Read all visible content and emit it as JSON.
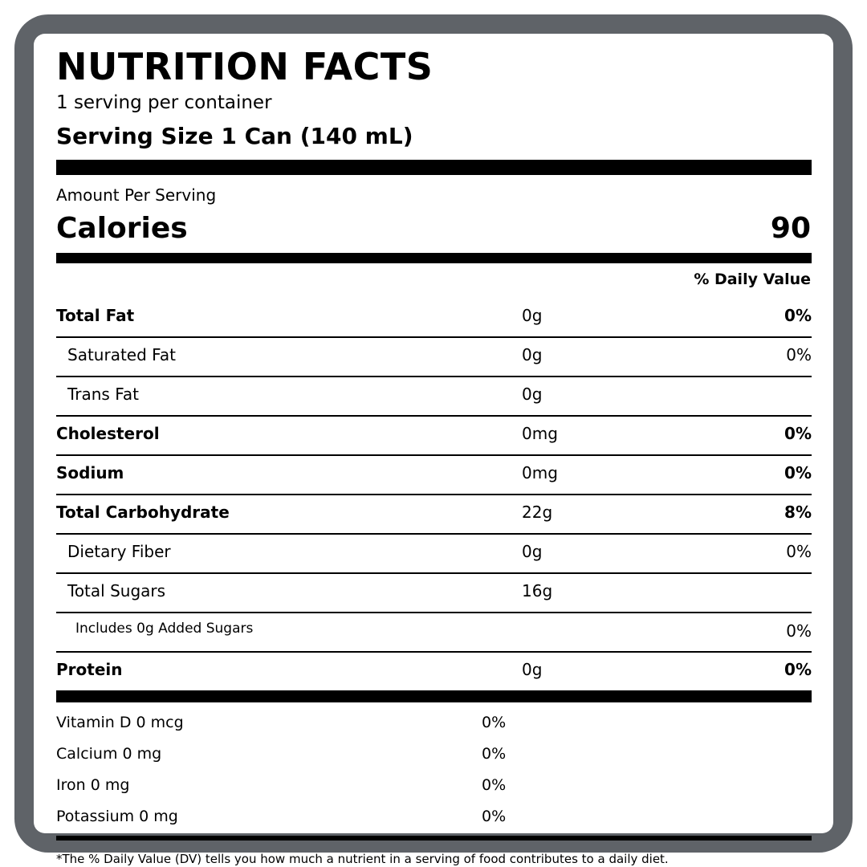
{
  "label": {
    "title": "NUTRITION FACTS",
    "servings_per_container": "1 serving per container",
    "serving_size": "Serving Size  1 Can (140 mL)",
    "amount_per_serving": "Amount Per Serving",
    "calories_label": "Calories",
    "calories_value": "90",
    "daily_value_header": "% Daily Value"
  },
  "nutrients": [
    {
      "name": "Total Fat",
      "amount": "0g",
      "dv": "0%"
    },
    {
      "name": "Saturated Fat",
      "amount": "0g",
      "dv": "0%"
    },
    {
      "name": "Trans Fat",
      "amount": "0g",
      "dv": ""
    },
    {
      "name": "Cholesterol",
      "amount": "0mg",
      "dv": "0%"
    },
    {
      "name": "Sodium",
      "amount": "0mg",
      "dv": "0%"
    },
    {
      "name": "Total Carbohydrate",
      "amount": "22g",
      "dv": "8%"
    },
    {
      "name": "Dietary Fiber",
      "amount": "0g",
      "dv": "0%"
    },
    {
      "name": "Total Sugars",
      "amount": "16g",
      "dv": ""
    },
    {
      "name": "Includes 0g Added Sugars",
      "amount": "",
      "dv": "0%"
    },
    {
      "name": "Protein",
      "amount": "0g",
      "dv": "0%"
    }
  ],
  "vitamins": [
    {
      "name": "Vitamin D  0 mcg",
      "dv": "0%"
    },
    {
      "name": "Calcium  0 mg",
      "dv": "0%"
    },
    {
      "name": "Iron  0 mg",
      "dv": "0%"
    },
    {
      "name": "Potassium  0 mg",
      "dv": "0%"
    }
  ],
  "footnote": "*The % Daily Value (DV) tells you how much a nutrient in a serving of food contributes to a daily diet.",
  "colors": {
    "frame": "#5f6368",
    "panel": "#ffffff",
    "ink": "#000000"
  }
}
